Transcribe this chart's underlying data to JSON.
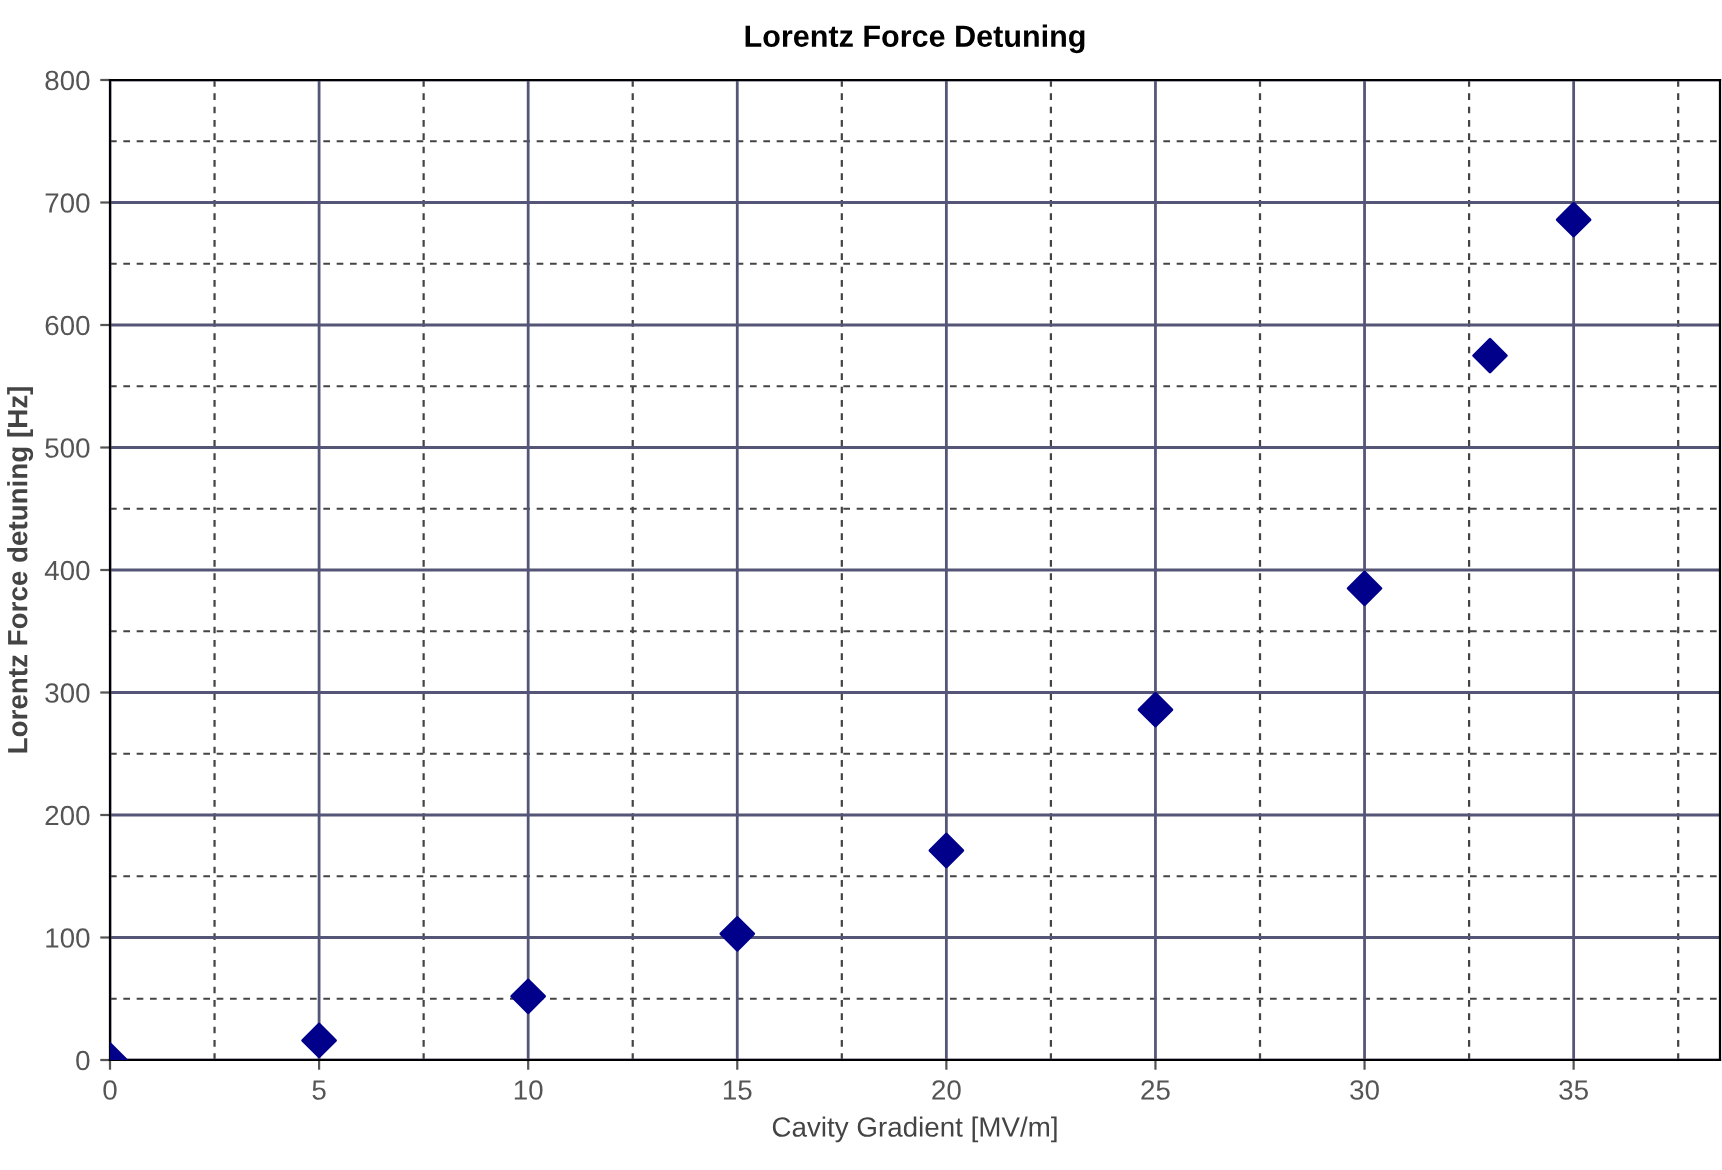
{
  "chart_data": {
    "type": "scatter",
    "title": "Lorentz Force Detuning",
    "xlabel": "Cavity Gradient [MV/m]",
    "ylabel": "Lorentz Force detuning [Hz]",
    "x": [
      0,
      5,
      10,
      15,
      20,
      25,
      30,
      33,
      35
    ],
    "series": [
      {
        "color": "#00008b",
        "values": [
          0,
          16,
          52,
          103,
          171,
          286,
          385,
          575,
          686
        ]
      }
    ],
    "marker": "diamond",
    "grid": true,
    "xlim": [
      0,
      38.5
    ],
    "xticks": [
      0,
      5,
      10,
      15,
      20,
      25,
      30,
      35
    ],
    "ylim": [
      0,
      800
    ],
    "yticks": [
      0,
      100,
      200,
      300,
      400,
      500,
      600,
      700,
      800
    ]
  }
}
